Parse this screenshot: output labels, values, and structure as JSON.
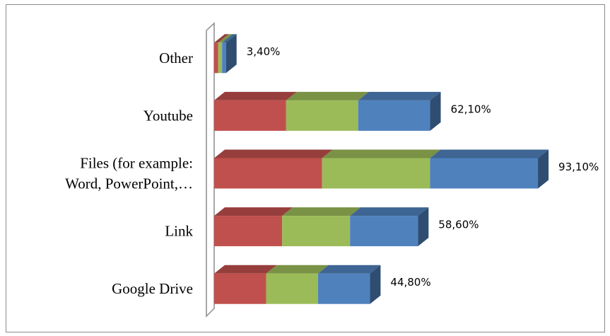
{
  "chart_data": {
    "type": "bar",
    "orientation": "horizontal",
    "style": "3d-stacked",
    "categories": [
      "Google Drive",
      "Link",
      "Files (for example: Word, PowerPoint,…",
      "Youtube",
      "Other"
    ],
    "category_label_lines": [
      [
        "Google Drive"
      ],
      [
        "Link"
      ],
      [
        "Files (for example:",
        "Word, PowerPoint,…"
      ],
      [
        "Youtube"
      ],
      [
        "Other"
      ]
    ],
    "values": [
      44.8,
      58.6,
      93.1,
      62.1,
      3.4
    ],
    "value_labels": [
      "44,80%",
      "58,60%",
      "93,10%",
      "62,10%",
      "3,40%"
    ],
    "segment_colors": [
      "#c0504d",
      "#9bbb59",
      "#4f81bd"
    ],
    "title": "",
    "xlabel": "",
    "ylabel": "",
    "xlim": [
      0,
      100
    ],
    "grid": false,
    "legend": "none"
  }
}
